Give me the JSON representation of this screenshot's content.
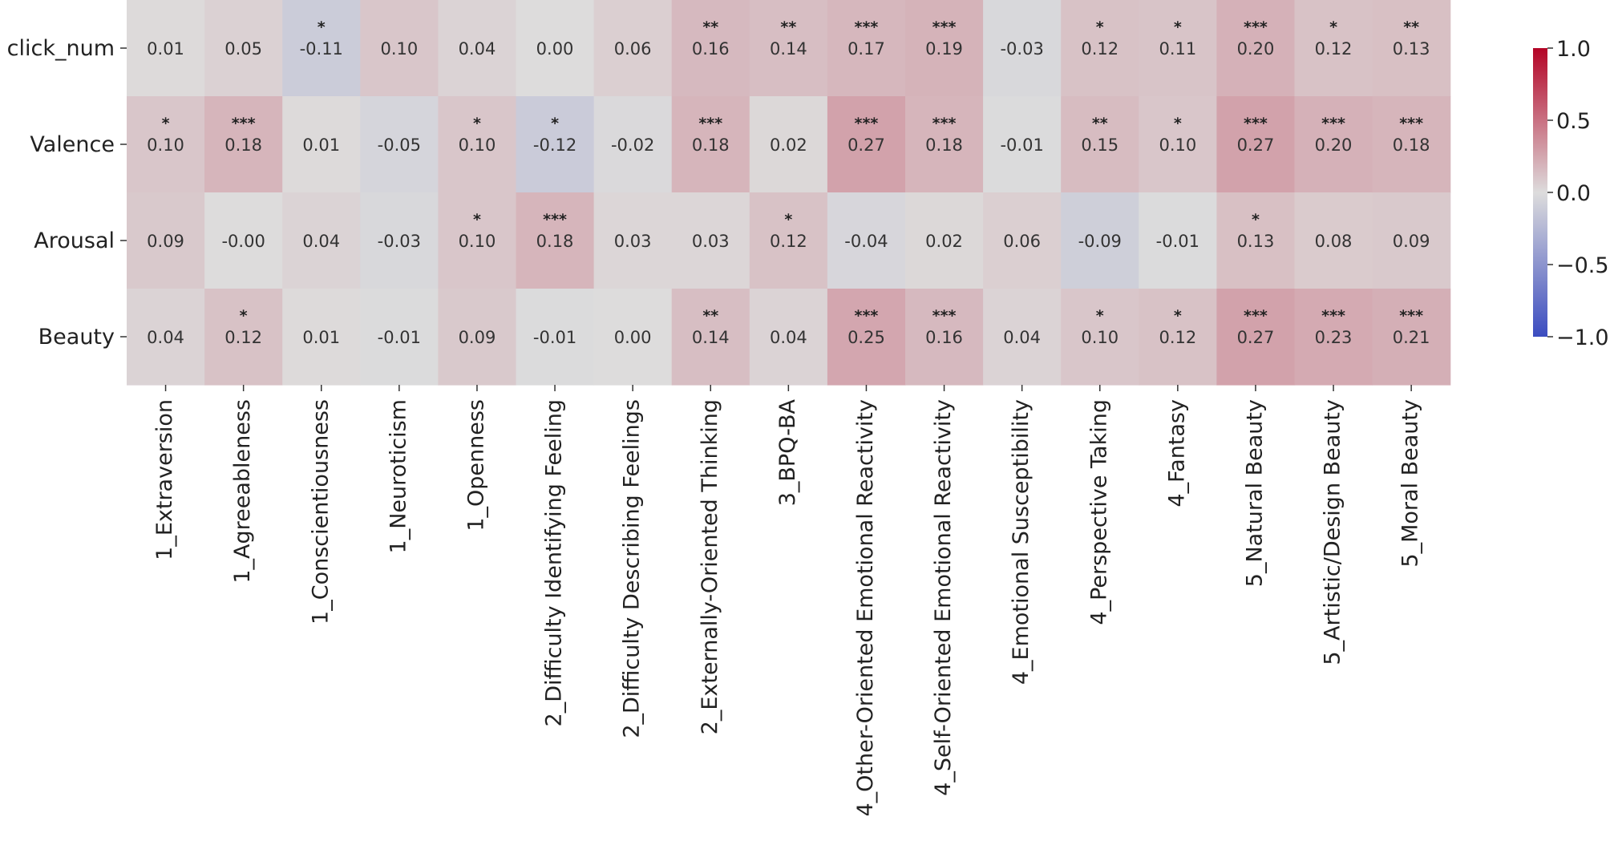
{
  "chart_data": {
    "type": "heatmap",
    "title": "",
    "xlabel": "",
    "ylabel": "",
    "rows": [
      "click_num",
      "Valence",
      "Arousal",
      "Beauty"
    ],
    "columns": [
      "1_Extraversion",
      "1_Agreeableness",
      "1_Conscientiousness",
      "1_Neuroticism",
      "1_Openness",
      "2_Difficulty Identifying Feeling",
      "2_Difficulty Describing Feelings",
      "2_Externally-Oriented Thinking",
      "3_BPQ-BA",
      "4_Other-Oriented Emotional Reactivity",
      "4_Self-Oriented Emotional Reactivity",
      "4_Emotional Susceptibility",
      "4_Perspective Taking",
      "4_Fantasy",
      "5_Natural Beauty",
      "5_Artistic/Design Beauty",
      "5_Moral Beauty"
    ],
    "values": [
      [
        0.01,
        0.05,
        -0.11,
        0.1,
        0.04,
        0.0,
        0.06,
        0.16,
        0.14,
        0.17,
        0.19,
        -0.03,
        0.12,
        0.11,
        0.2,
        0.12,
        0.13
      ],
      [
        0.1,
        0.18,
        0.01,
        -0.05,
        0.1,
        -0.12,
        -0.02,
        0.18,
        0.02,
        0.27,
        0.18,
        -0.01,
        0.15,
        0.1,
        0.27,
        0.2,
        0.18
      ],
      [
        0.09,
        -0.0,
        0.04,
        -0.03,
        0.1,
        0.18,
        0.03,
        0.03,
        0.12,
        -0.04,
        0.02,
        0.06,
        -0.09,
        -0.01,
        0.13,
        0.08,
        0.09
      ],
      [
        0.04,
        0.12,
        0.01,
        -0.01,
        0.09,
        -0.01,
        0.0,
        0.14,
        0.04,
        0.25,
        0.16,
        0.04,
        0.1,
        0.12,
        0.27,
        0.23,
        0.21
      ]
    ],
    "value_labels": [
      [
        "0.01",
        "0.05",
        "-0.11",
        "0.10",
        "0.04",
        "0.00",
        "0.06",
        "0.16",
        "0.14",
        "0.17",
        "0.19",
        "-0.03",
        "0.12",
        "0.11",
        "0.20",
        "0.12",
        "0.13"
      ],
      [
        "0.10",
        "0.18",
        "0.01",
        "-0.05",
        "0.10",
        "-0.12",
        "-0.02",
        "0.18",
        "0.02",
        "0.27",
        "0.18",
        "-0.01",
        "0.15",
        "0.10",
        "0.27",
        "0.20",
        "0.18"
      ],
      [
        "0.09",
        "-0.00",
        "0.04",
        "-0.03",
        "0.10",
        "0.18",
        "0.03",
        "0.03",
        "0.12",
        "-0.04",
        "0.02",
        "0.06",
        "-0.09",
        "-0.01",
        "0.13",
        "0.08",
        "0.09"
      ],
      [
        "0.04",
        "0.12",
        "0.01",
        "-0.01",
        "0.09",
        "-0.01",
        "0.00",
        "0.14",
        "0.04",
        "0.25",
        "0.16",
        "0.04",
        "0.10",
        "0.12",
        "0.27",
        "0.23",
        "0.21"
      ]
    ],
    "significance": [
      [
        "",
        "",
        "*",
        "",
        "",
        "",
        "",
        "**",
        "**",
        "***",
        "***",
        "",
        "*",
        "*",
        "***",
        "*",
        "**"
      ],
      [
        "*",
        "***",
        "",
        "",
        "*",
        "*",
        "",
        "***",
        "",
        "***",
        "***",
        "",
        "**",
        "*",
        "***",
        "***",
        "***"
      ],
      [
        "",
        "",
        "",
        "",
        "*",
        "***",
        "",
        "",
        "*",
        "",
        "",
        "",
        "",
        "",
        "*",
        "",
        ""
      ],
      [
        "",
        "*",
        "",
        "",
        "",
        "",
        "",
        "**",
        "",
        "***",
        "***",
        "",
        "*",
        "*",
        "***",
        "***",
        "***"
      ]
    ],
    "colormap": "coolwarm",
    "vmin": -1.0,
    "vmax": 1.0,
    "colorbar_ticks": [
      1.0,
      0.5,
      0.0,
      -0.5,
      -1.0
    ],
    "colorbar_tick_labels": [
      "1.0",
      "0.5",
      "0.0",
      "−0.5",
      "−1.0"
    ],
    "colors": {
      "low": "#3b4cc0",
      "mid": "#dddcdc",
      "high": "#b40426"
    }
  }
}
